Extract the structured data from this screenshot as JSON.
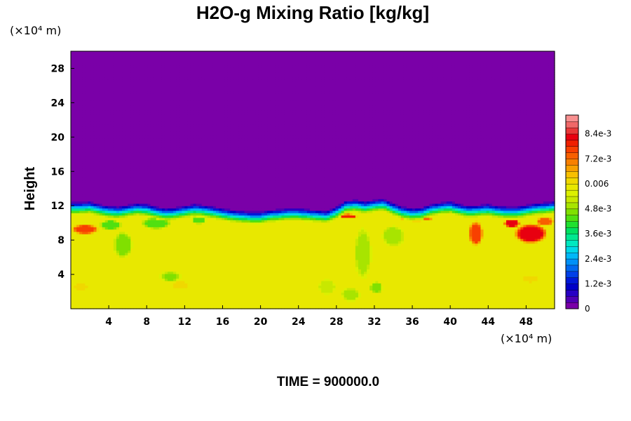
{
  "chart_data": {
    "type": "heatmap",
    "title": "H2O-g Mixing Ratio [kg/kg]",
    "ylabel": "Height",
    "xunit": "(×10⁴ m)",
    "yunit": "(×10⁴ m)",
    "time_label": "TIME = 900000.0",
    "xlim": [
      0,
      51
    ],
    "ylim": [
      0,
      30
    ],
    "xticks": [
      4,
      8,
      12,
      16,
      20,
      24,
      28,
      32,
      36,
      40,
      44,
      48
    ],
    "xtick_labels": [
      "4",
      "8",
      "12",
      "16",
      "20",
      "24",
      "28",
      "32",
      "36",
      "40",
      "44",
      "48"
    ],
    "yticks": [
      4,
      8,
      12,
      16,
      20,
      24,
      28
    ],
    "ytick_labels": [
      "4",
      "8",
      "12",
      "16",
      "20",
      "24",
      "28"
    ],
    "colorbar": {
      "min": 0,
      "max": 0.0093,
      "levels": 31,
      "ticks": [
        0,
        0.0012,
        0.0024,
        0.0036,
        0.0048,
        0.006,
        0.0072,
        0.0084
      ],
      "tick_labels": [
        "0",
        "1.2e-3",
        "2.4e-3",
        "3.6e-3",
        "4.8e-3",
        "0.006",
        "7.2e-3",
        "8.4e-3"
      ],
      "colors": [
        "#7a00a8",
        "#5000b4",
        "#2800c4",
        "#0000c8",
        "#0018d8",
        "#0040e8",
        "#0068f0",
        "#0090f8",
        "#00b8f8",
        "#00d8e8",
        "#00e8c0",
        "#00e890",
        "#00e060",
        "#20e030",
        "#50e010",
        "#80e000",
        "#a8e400",
        "#c8e800",
        "#dcf000",
        "#e8e800",
        "#f0d800",
        "#f8c000",
        "#f8a000",
        "#f88000",
        "#f86000",
        "#f84000",
        "#f02000",
        "#e80010",
        "#e83838",
        "#f06868",
        "#f89090"
      ]
    },
    "field": {
      "background_value": 0.0057,
      "upper_value": 0.0,
      "interface_height": [
        12.5,
        12.5,
        12.6,
        12.3,
        12.1,
        12.0,
        12.2,
        12.4,
        12.3,
        12.0,
        11.8,
        11.9,
        12.1,
        12.3,
        12.2,
        12.0,
        11.8,
        11.6,
        11.5,
        11.4,
        11.4,
        11.6,
        11.7,
        11.8,
        11.8,
        11.7,
        11.6,
        11.5,
        12.0,
        12.7,
        12.8,
        12.6,
        12.8,
        12.9,
        12.4,
        12.0,
        11.8,
        11.9,
        12.3,
        12.5,
        12.6,
        12.3,
        12.1,
        12.2,
        12.3,
        12.1,
        12.0,
        12.0,
        12.2,
        12.4,
        12.5,
        12.6
      ],
      "layer_thickness": 1.5,
      "features": [
        {
          "x": 1.5,
          "y": 9.3,
          "rx": 1.5,
          "ry": 0.6,
          "value": 0.0076
        },
        {
          "x": 4.2,
          "y": 9.8,
          "rx": 1.2,
          "ry": 0.6,
          "value": 0.0043
        },
        {
          "x": 5.5,
          "y": 7.5,
          "rx": 1.0,
          "ry": 1.6,
          "value": 0.0046
        },
        {
          "x": 9.0,
          "y": 10.0,
          "rx": 1.6,
          "ry": 0.7,
          "value": 0.0044
        },
        {
          "x": 10.5,
          "y": 3.8,
          "rx": 1.1,
          "ry": 0.6,
          "value": 0.0047
        },
        {
          "x": 11.5,
          "y": 2.8,
          "rx": 1.0,
          "ry": 0.6,
          "value": 0.0061
        },
        {
          "x": 13.5,
          "y": 10.4,
          "rx": 0.8,
          "ry": 0.5,
          "value": 0.0043
        },
        {
          "x": 27.0,
          "y": 2.6,
          "rx": 0.9,
          "ry": 0.9,
          "value": 0.0051
        },
        {
          "x": 29.5,
          "y": 1.7,
          "rx": 1.0,
          "ry": 0.8,
          "value": 0.005
        },
        {
          "x": 30.8,
          "y": 6.5,
          "rx": 0.9,
          "ry": 3.0,
          "value": 0.0049
        },
        {
          "x": 32.2,
          "y": 2.5,
          "rx": 0.7,
          "ry": 0.7,
          "value": 0.0046
        },
        {
          "x": 34.0,
          "y": 8.5,
          "rx": 1.2,
          "ry": 1.2,
          "value": 0.0048
        },
        {
          "x": 29.2,
          "y": 10.8,
          "rx": 1.0,
          "ry": 0.3,
          "value": 0.0078
        },
        {
          "x": 36.5,
          "y": 10.5,
          "rx": 1.8,
          "ry": 0.3,
          "value": 0.0072
        },
        {
          "x": 42.7,
          "y": 8.8,
          "rx": 0.8,
          "ry": 1.5,
          "value": 0.0076
        },
        {
          "x": 46.5,
          "y": 10.0,
          "rx": 0.9,
          "ry": 0.5,
          "value": 0.0083
        },
        {
          "x": 48.5,
          "y": 8.8,
          "rx": 1.8,
          "ry": 1.2,
          "value": 0.0082
        },
        {
          "x": 50.0,
          "y": 10.2,
          "rx": 1.0,
          "ry": 0.5,
          "value": 0.0074
        },
        {
          "x": 1.0,
          "y": 2.6,
          "rx": 0.8,
          "ry": 0.5,
          "value": 0.0062
        },
        {
          "x": 48.5,
          "y": 3.5,
          "rx": 1.0,
          "ry": 0.5,
          "value": 0.0061
        }
      ]
    }
  }
}
